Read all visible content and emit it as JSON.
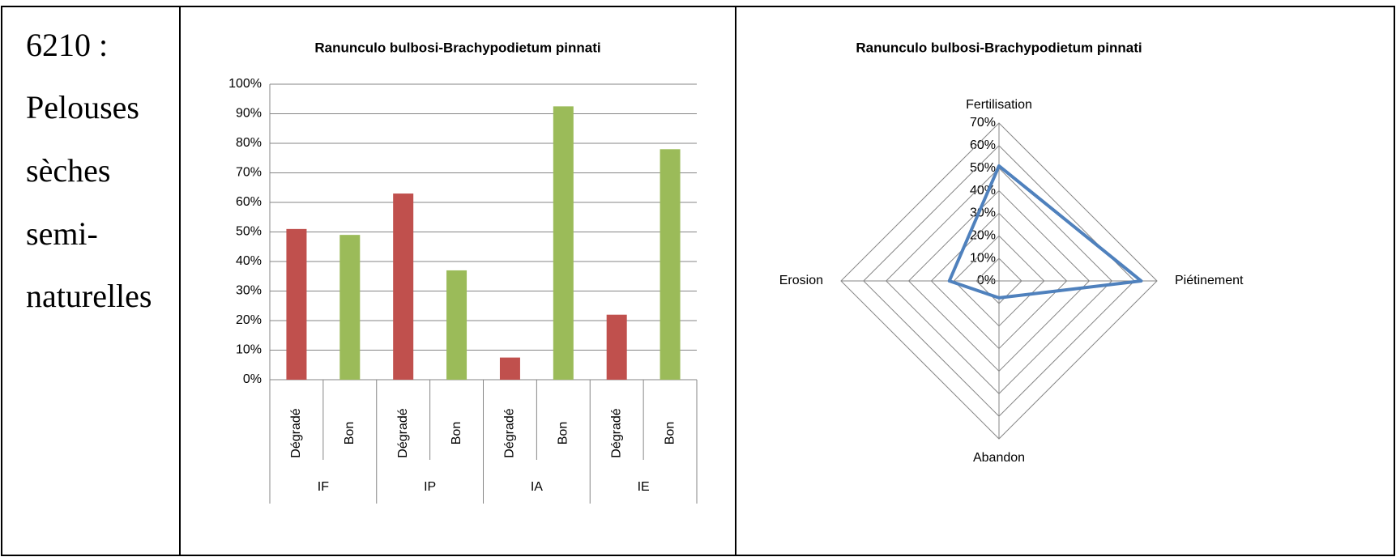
{
  "text": {
    "lines": [
      "6210 :",
      "Pelouses",
      "sèches",
      "semi-",
      "naturelles"
    ]
  },
  "chart_data": [
    {
      "type": "bar",
      "title": "Ranunculo bulbosi-Brachypodietum pinnati",
      "categories": [
        "Dégradé",
        "Bon",
        "Dégradé",
        "Bon",
        "Dégradé",
        "Bon",
        "Dégradé",
        "Bon"
      ],
      "groups": [
        "IF",
        "IP",
        "IA",
        "IE"
      ],
      "values": [
        51,
        49,
        63,
        37,
        7.5,
        92.5,
        22,
        78
      ],
      "colors": [
        "#c0504d",
        "#9bbb59",
        "#c0504d",
        "#9bbb59",
        "#c0504d",
        "#9bbb59",
        "#c0504d",
        "#9bbb59"
      ],
      "ylim": [
        0,
        100
      ],
      "yticks": [
        {
          "value": 0,
          "label": "0%"
        },
        {
          "value": 10,
          "label": "10%"
        },
        {
          "value": 20,
          "label": "20%"
        },
        {
          "value": 30,
          "label": "30%"
        },
        {
          "value": 40,
          "label": "40%"
        },
        {
          "value": 50,
          "label": "50%"
        },
        {
          "value": 60,
          "label": "60%"
        },
        {
          "value": 70,
          "label": "70%"
        },
        {
          "value": 80,
          "label": "80%"
        },
        {
          "value": 90,
          "label": "90%"
        },
        {
          "value": 100,
          "label": "100%"
        }
      ],
      "grid": true
    },
    {
      "type": "radar",
      "title": "Ranunculo bulbosi-Brachypodietum pinnati",
      "categories": [
        "Fertilisation",
        "Piétinement",
        "Abandon",
        "Erosion"
      ],
      "values": [
        51,
        63,
        7.5,
        22
      ],
      "color": "#4f81bd",
      "rlim": [
        0,
        70
      ],
      "rticks": [
        {
          "value": 0,
          "label": "0%"
        },
        {
          "value": 10,
          "label": "10%"
        },
        {
          "value": 20,
          "label": "20%"
        },
        {
          "value": 30,
          "label": "30%"
        },
        {
          "value": 40,
          "label": "40%"
        },
        {
          "value": 50,
          "label": "50%"
        },
        {
          "value": 60,
          "label": "60%"
        },
        {
          "value": 70,
          "label": "70%"
        }
      ],
      "grid": true
    }
  ]
}
